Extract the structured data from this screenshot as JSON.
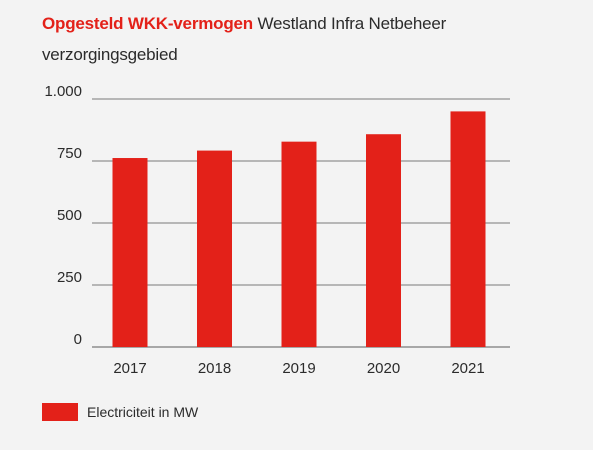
{
  "title": {
    "bold": "Opgesteld WKK-vermogen",
    "normal": "Westland Infra Netbeheer",
    "line2": "verzorgingsgebied"
  },
  "colors": {
    "accent": "#e32119",
    "gridline": "#7a7a7a",
    "text": "#2b2b2b",
    "background": "#f3f3f3"
  },
  "chart_data": {
    "type": "bar",
    "categories": [
      "2017",
      "2018",
      "2019",
      "2020",
      "2021"
    ],
    "series": [
      {
        "name": "Electriciteit in MW",
        "values": [
          762,
          792,
          828,
          858,
          950
        ]
      }
    ],
    "ylim": [
      0,
      1000
    ],
    "yticks": [
      0,
      250,
      500,
      750,
      1000
    ],
    "ytick_labels": [
      "0",
      "250",
      "500",
      "750",
      "1.000"
    ],
    "grid": true,
    "legend": "bottom-left"
  },
  "legend": {
    "label": "Electriciteit in MW"
  }
}
